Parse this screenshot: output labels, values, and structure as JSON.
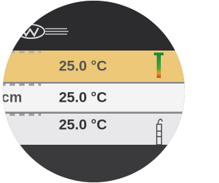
{
  "rows": [
    {
      "value": "25.0 °C"
    },
    {
      "label": "cm",
      "value": "25.0 °C"
    },
    {
      "value": "25.0 °C"
    }
  ]
}
